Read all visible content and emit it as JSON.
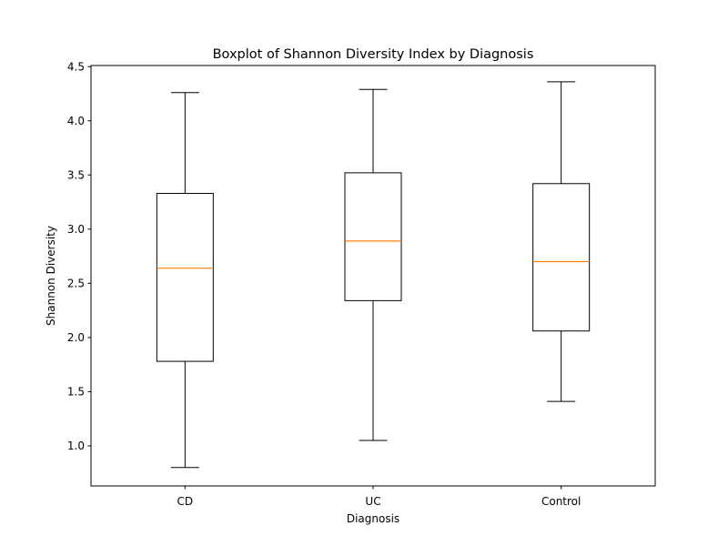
{
  "chart_data": {
    "type": "boxplot",
    "title": "Boxplot of Shannon Diversity Index by Diagnosis",
    "xlabel": "Diagnosis",
    "ylabel": "Shannon Diversity",
    "ylim": [
      0.63,
      4.51
    ],
    "yticks": [
      1.0,
      1.5,
      2.0,
      2.5,
      3.0,
      3.5,
      4.0,
      4.5
    ],
    "ytick_labels": [
      "1.0",
      "1.5",
      "2.0",
      "2.5",
      "3.0",
      "3.5",
      "4.0",
      "4.5"
    ],
    "grid": false,
    "categories": [
      "CD",
      "UC",
      "Control"
    ],
    "boxes": [
      {
        "category": "CD",
        "whisker_low": 0.8,
        "q1": 1.78,
        "median": 2.64,
        "q3": 3.33,
        "whisker_high": 4.26
      },
      {
        "category": "UC",
        "whisker_low": 1.05,
        "q1": 2.34,
        "median": 2.89,
        "q3": 3.52,
        "whisker_high": 4.29
      },
      {
        "category": "Control",
        "whisker_low": 1.41,
        "q1": 2.06,
        "median": 2.7,
        "q3": 3.42,
        "whisker_high": 4.36
      }
    ],
    "colors": {
      "box": "#000000",
      "median": "#ff7f0e",
      "axes": "#000000",
      "background": "#ffffff"
    }
  }
}
